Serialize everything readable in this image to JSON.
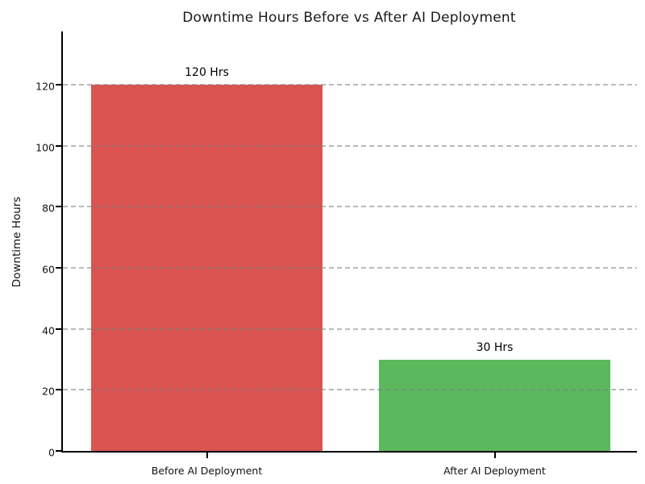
{
  "chart_data": {
    "type": "bar",
    "title": "Downtime Hours Before vs After AI Deployment",
    "xlabel": "",
    "ylabel": "Downtime Hours",
    "categories": [
      "Before AI Deployment",
      "After AI Deployment"
    ],
    "values": [
      120,
      30
    ],
    "bar_value_labels": [
      "120 Hrs",
      "30 Hrs"
    ],
    "bar_colors": [
      "#d9534f",
      "#5cb85c"
    ],
    "yticks": [
      0,
      20,
      40,
      60,
      80,
      100,
      120
    ],
    "ylim": [
      0,
      138
    ],
    "grid": "horizontal-dashed",
    "grid_color": "#c0c0c0",
    "legend": "none",
    "background_color": "#ffffff",
    "title_color": "#1a1a1a"
  }
}
